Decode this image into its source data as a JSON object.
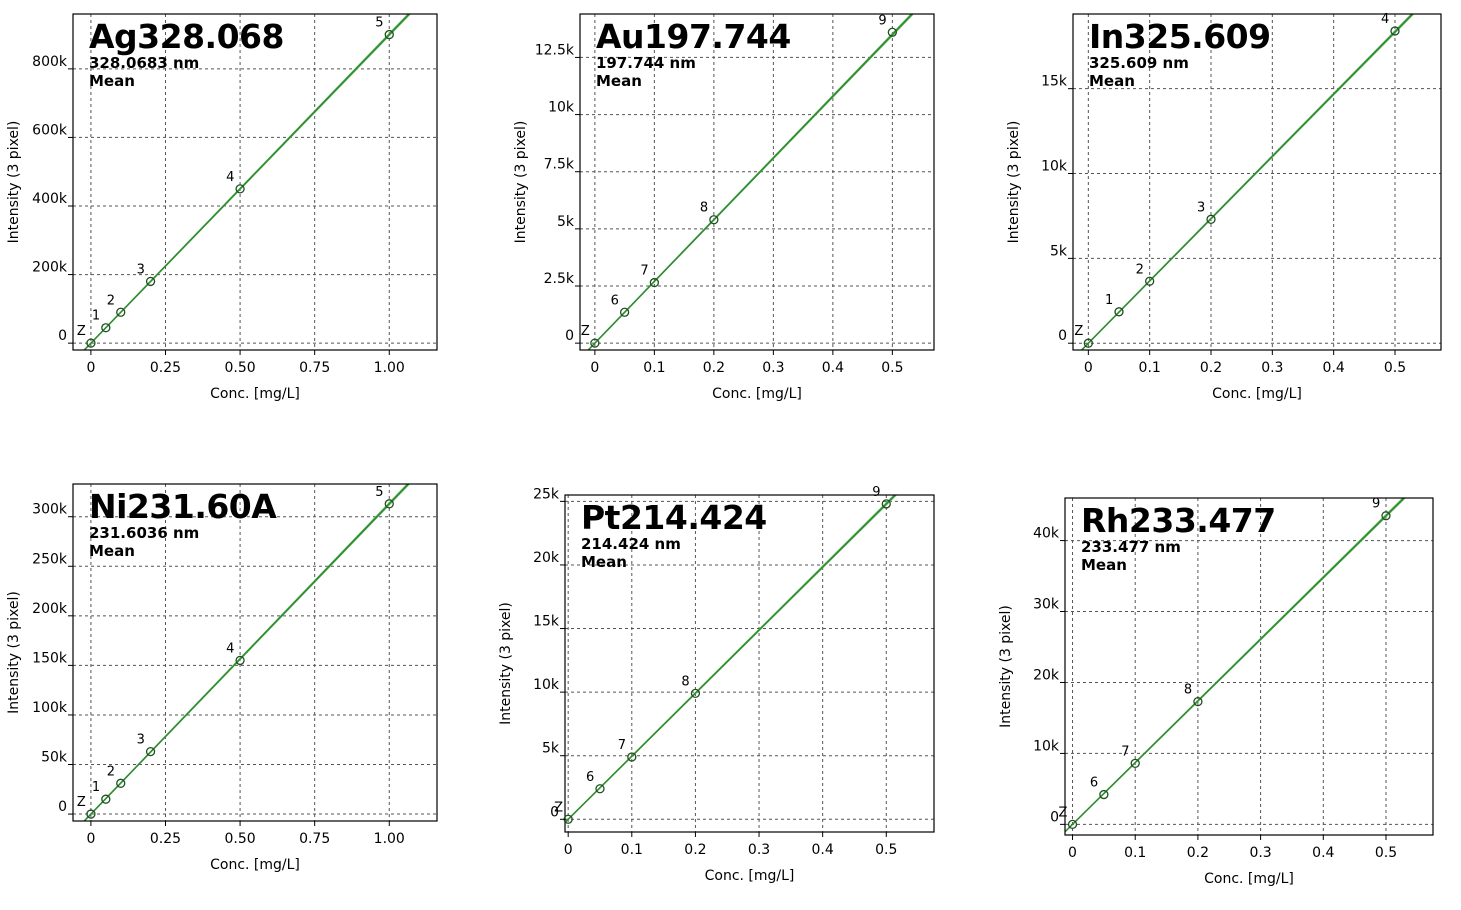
{
  "chart_data": [
    {
      "type": "scatter",
      "title": "Ag328.068",
      "subtitle": "328.0683 nm",
      "subtitle2": "Mean",
      "xlabel": "Conc. [mg/L]",
      "ylabel": "Intensity (3 pixel)",
      "xlim": [
        -0.06,
        1.16
      ],
      "ylim": [
        -20000,
        960000
      ],
      "xticks": [
        0,
        0.25,
        0.5,
        0.75,
        1.0
      ],
      "xtick_labels": [
        "0",
        "0.25",
        "0.50",
        "0.75",
        "1.00"
      ],
      "yticks": [
        0,
        200000,
        400000,
        600000,
        800000
      ],
      "ytick_labels": [
        "0",
        "200k",
        "400k",
        "600k",
        "800k"
      ],
      "grid": true,
      "points": [
        {
          "label": "Z",
          "x": 0,
          "y": 0
        },
        {
          "label": "1",
          "x": 0.05,
          "y": 45000
        },
        {
          "label": "2",
          "x": 0.1,
          "y": 90000
        },
        {
          "label": "3",
          "x": 0.2,
          "y": 180000
        },
        {
          "label": "4",
          "x": 0.5,
          "y": 450000
        },
        {
          "label": "5",
          "x": 1.0,
          "y": 900000
        }
      ],
      "fit": {
        "slope": 900000,
        "intercept": 0
      }
    },
    {
      "type": "scatter",
      "title": "Au197.744",
      "subtitle": "197.744 nm",
      "subtitle2": "Mean",
      "xlabel": "Conc. [mg/L]",
      "ylabel": "Intensity (3 pixel)",
      "xlim": [
        -0.025,
        0.57
      ],
      "ylim": [
        -300,
        14400
      ],
      "xticks": [
        0,
        0.1,
        0.2,
        0.3,
        0.4,
        0.5
      ],
      "xtick_labels": [
        "0",
        "0.1",
        "0.2",
        "0.3",
        "0.4",
        "0.5"
      ],
      "yticks": [
        0,
        2500,
        5000,
        7500,
        10000,
        12500
      ],
      "ytick_labels": [
        "0",
        "2.5k",
        "5k",
        "7.5k",
        "10k",
        "12.5k"
      ],
      "grid": true,
      "points": [
        {
          "label": "Z",
          "x": 0,
          "y": 0
        },
        {
          "label": "6",
          "x": 0.05,
          "y": 1350
        },
        {
          "label": "7",
          "x": 0.1,
          "y": 2650
        },
        {
          "label": "8",
          "x": 0.2,
          "y": 5400
        },
        {
          "label": "9",
          "x": 0.5,
          "y": 13600
        }
      ],
      "fit": {
        "slope": 27000,
        "intercept": 0
      }
    },
    {
      "type": "scatter",
      "title": "In325.609",
      "subtitle": "325.609 nm",
      "subtitle2": "Mean",
      "xlabel": "Conc. [mg/L]",
      "ylabel": "Intensity (3 pixel)",
      "xlim": [
        -0.025,
        0.575
      ],
      "ylim": [
        -400,
        19400
      ],
      "xticks": [
        0,
        0.1,
        0.2,
        0.3,
        0.4,
        0.5
      ],
      "xtick_labels": [
        "0",
        "0.1",
        "0.2",
        "0.3",
        "0.4",
        "0.5"
      ],
      "yticks": [
        0,
        5000,
        10000,
        15000
      ],
      "ytick_labels": [
        "0",
        "5k",
        "10k",
        "15k"
      ],
      "grid": true,
      "points": [
        {
          "label": "Z",
          "x": 0,
          "y": 0
        },
        {
          "label": "1",
          "x": 0.05,
          "y": 1850
        },
        {
          "label": "2",
          "x": 0.1,
          "y": 3650
        },
        {
          "label": "3",
          "x": 0.2,
          "y": 7300
        },
        {
          "label": "4",
          "x": 0.5,
          "y": 18400
        }
      ],
      "fit": {
        "slope": 36700,
        "intercept": 0
      }
    },
    {
      "type": "scatter",
      "title": "Ni231.60A",
      "subtitle": "231.6036 nm",
      "subtitle2": "Mean",
      "xlabel": "Conc. [mg/L]",
      "ylabel": "Intensity (3 pixel)",
      "xlim": [
        -0.06,
        1.16
      ],
      "ylim": [
        -7000,
        333000
      ],
      "xticks": [
        0,
        0.25,
        0.5,
        0.75,
        1.0
      ],
      "xtick_labels": [
        "0",
        "0.25",
        "0.50",
        "0.75",
        "1.00"
      ],
      "yticks": [
        0,
        50000,
        100000,
        150000,
        200000,
        250000,
        300000
      ],
      "ytick_labels": [
        "0",
        "50k",
        "100k",
        "150k",
        "200k",
        "250k",
        "300k"
      ],
      "grid": true,
      "points": [
        {
          "label": "Z",
          "x": 0,
          "y": 0
        },
        {
          "label": "1",
          "x": 0.05,
          "y": 15000
        },
        {
          "label": "2",
          "x": 0.1,
          "y": 31000
        },
        {
          "label": "3",
          "x": 0.2,
          "y": 63000
        },
        {
          "label": "4",
          "x": 0.5,
          "y": 155000
        },
        {
          "label": "5",
          "x": 1.0,
          "y": 313000
        }
      ],
      "fit": {
        "slope": 313000,
        "intercept": 0
      }
    },
    {
      "type": "scatter",
      "title": "Pt214.424",
      "subtitle": "214.424 nm",
      "subtitle2": "Mean",
      "xlabel": "Conc. [mg/L]",
      "ylabel": "Intensity (3 pixel)",
      "xlim": [
        -0.005,
        0.575
      ],
      "ylim": [
        -1000,
        25500
      ],
      "xticks": [
        0,
        0.1,
        0.2,
        0.3,
        0.4,
        0.5
      ],
      "xtick_labels": [
        "0",
        "0.1",
        "0.2",
        "0.3",
        "0.4",
        "0.5"
      ],
      "yticks": [
        0,
        5000,
        10000,
        15000,
        20000,
        25000
      ],
      "ytick_labels": [
        "0",
        "5k",
        "10k",
        "15k",
        "20k",
        "25k"
      ],
      "grid": true,
      "points": [
        {
          "label": "Z",
          "x": 0,
          "y": 0
        },
        {
          "label": "6",
          "x": 0.05,
          "y": 2400
        },
        {
          "label": "7",
          "x": 0.1,
          "y": 4900
        },
        {
          "label": "8",
          "x": 0.2,
          "y": 9900
        },
        {
          "label": "9",
          "x": 0.5,
          "y": 24800
        }
      ],
      "fit": {
        "slope": 49600,
        "intercept": 0
      }
    },
    {
      "type": "scatter",
      "title": "Rh233.477",
      "subtitle": "233.477 nm",
      "subtitle2": "Mean",
      "xlabel": "Conc. [mg/L]",
      "ylabel": "Intensity (3 pixel)",
      "xlim": [
        -0.012,
        0.575
      ],
      "ylim": [
        -1500,
        46000
      ],
      "xticks": [
        0,
        0.1,
        0.2,
        0.3,
        0.4,
        0.5
      ],
      "xtick_labels": [
        "0",
        "0.1",
        "0.2",
        "0.3",
        "0.4",
        "0.5"
      ],
      "yticks": [
        0,
        10000,
        20000,
        30000,
        40000
      ],
      "ytick_labels": [
        "0",
        "10k",
        "20k",
        "30k",
        "40k"
      ],
      "grid": true,
      "points": [
        {
          "label": "Z",
          "x": 0,
          "y": 0
        },
        {
          "label": "6",
          "x": 0.05,
          "y": 4200
        },
        {
          "label": "7",
          "x": 0.1,
          "y": 8600
        },
        {
          "label": "8",
          "x": 0.2,
          "y": 17300
        },
        {
          "label": "9",
          "x": 0.5,
          "y": 43500
        }
      ],
      "fit": {
        "slope": 87000,
        "intercept": 0
      }
    }
  ],
  "colors": {
    "fit_line": "#2e8b2e",
    "band_line": "#6dbb6d",
    "marker": "#1f4f1f",
    "grid": "#555555",
    "axis": "#000000"
  }
}
